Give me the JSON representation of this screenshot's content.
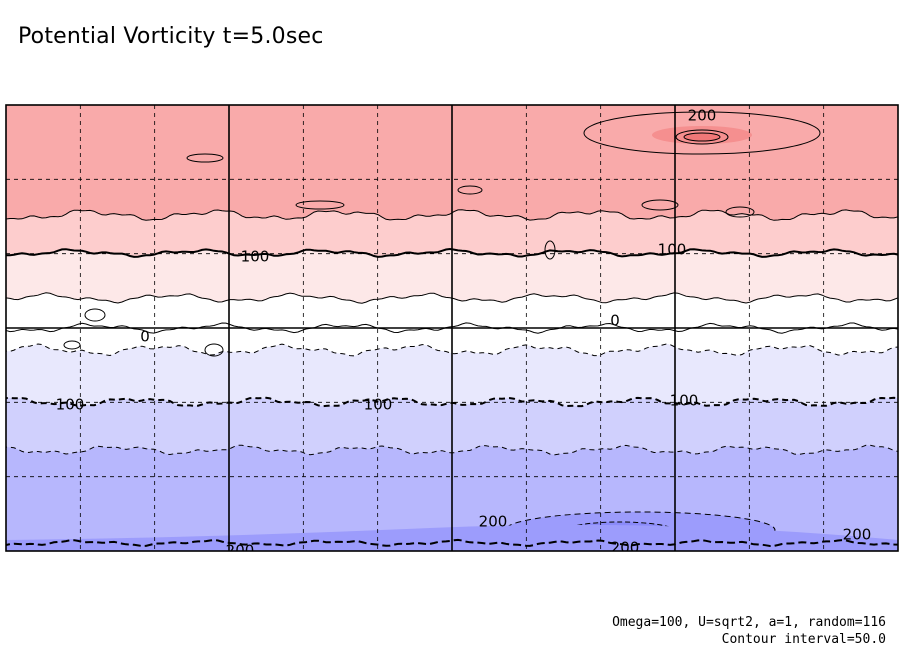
{
  "title": "Potential Vorticity t=5.0sec",
  "annotation": {
    "line1": "Omega=100, U=sqrt2, a=1, random=116",
    "line2": "Contour interval=50.0"
  },
  "colors": {
    "pv_pos_3": "#f9aaaa",
    "pv_pos_2": "#fdcdcd",
    "pv_pos_1": "#fde8e8",
    "pv_zero": "#ffffff",
    "pv_neg_1": "#e8e8fd",
    "pv_neg_2": "#d0d0fd",
    "pv_neg_3": "#b7b7fd",
    "pv_neg_4": "#9c9cfc",
    "pv_pos_peak": "#f07878",
    "pv_neg_peak": "#7a7af8"
  },
  "chart_data": {
    "type": "heatmap",
    "title": "Potential Vorticity t=5.0sec",
    "contour_interval": 50.0,
    "grid": true,
    "x_divisions": 12,
    "y_divisions": 6,
    "levels": [
      -250,
      -200,
      -150,
      -100,
      -50,
      0,
      50,
      100,
      150,
      200,
      250
    ],
    "contour_labels": [
      {
        "value": "200"
      },
      {
        "value": "100"
      },
      {
        "value": "100"
      },
      {
        "value": "0"
      },
      {
        "value": "0"
      },
      {
        "value": "100"
      },
      {
        "value": "100"
      },
      {
        "value": "100"
      },
      {
        "value": "200"
      },
      {
        "value": "200"
      },
      {
        "value": "200"
      },
      {
        "value": "200"
      }
    ]
  }
}
